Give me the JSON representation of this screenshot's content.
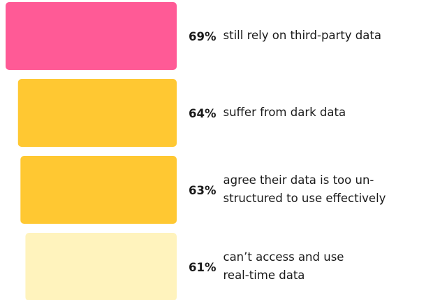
{
  "chart_data": {
    "type": "bar",
    "categories": [
      [
        "still rely on third-party data"
      ],
      [
        "suffer from dark data"
      ],
      [
        "agree their data is too un-",
        "structured to use effectively"
      ],
      [
        "can’t access and use",
        "real-time data"
      ]
    ],
    "values": [
      69,
      64,
      63,
      61
    ],
    "value_labels": [
      "69%",
      "64%",
      "63%",
      "61%"
    ],
    "colors": [
      "#ff5a96",
      "#ffc832",
      "#ffc832",
      "#fff3bd"
    ]
  }
}
